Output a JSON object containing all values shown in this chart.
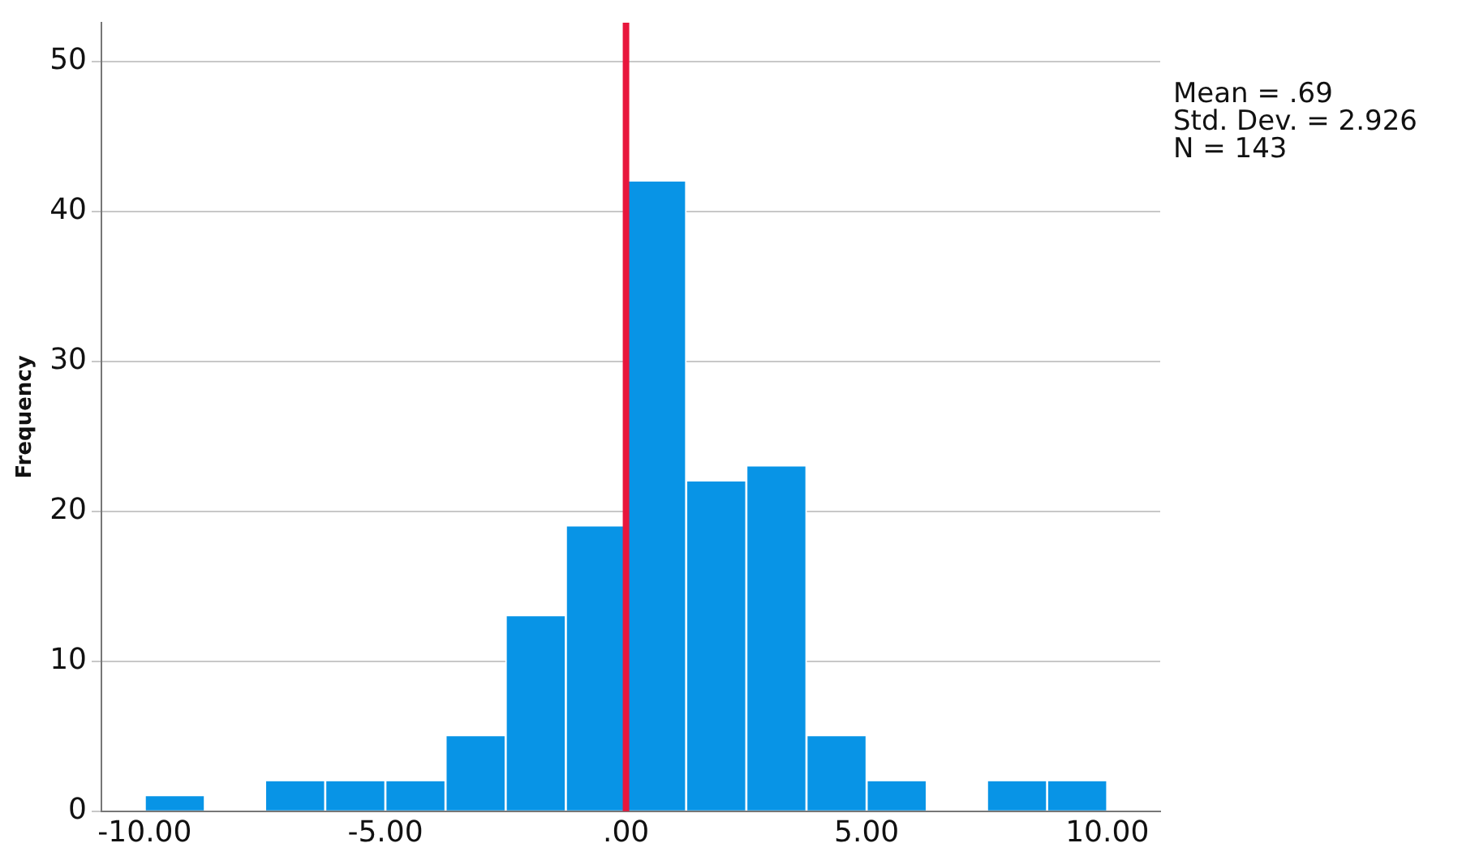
{
  "chart_data": {
    "type": "histogram",
    "ylabel": "Frequency",
    "bins": [
      -10,
      -8.75,
      -7.5,
      -6.25,
      -5,
      -3.75,
      -2.5,
      -1.25,
      0,
      1.25,
      2.5,
      3.75,
      5,
      6.25,
      7.5,
      8.75,
      10
    ],
    "values": [
      1,
      0,
      2,
      2,
      2,
      5,
      13,
      19,
      42,
      22,
      23,
      5,
      2,
      0,
      2,
      2
    ],
    "color": "#0894e6",
    "xlim": [
      -10.9,
      11.1
    ],
    "xticks": [
      {
        "value": -10,
        "label": "-10.00"
      },
      {
        "value": -5,
        "label": "-5.00"
      },
      {
        "value": 0,
        "label": ".00"
      },
      {
        "value": 5,
        "label": "5.00"
      },
      {
        "value": 10,
        "label": "10.00"
      }
    ],
    "ylim": [
      0,
      52.6
    ],
    "yticks": [
      0,
      10,
      20,
      30,
      40,
      50
    ],
    "grid": "y",
    "ref_lines": [
      {
        "axis": "x",
        "value": 0,
        "color": "#e8163c"
      }
    ],
    "annotations": [
      "Mean = .69",
      "Std. Dev. = 2.926",
      "N = 143"
    ]
  }
}
